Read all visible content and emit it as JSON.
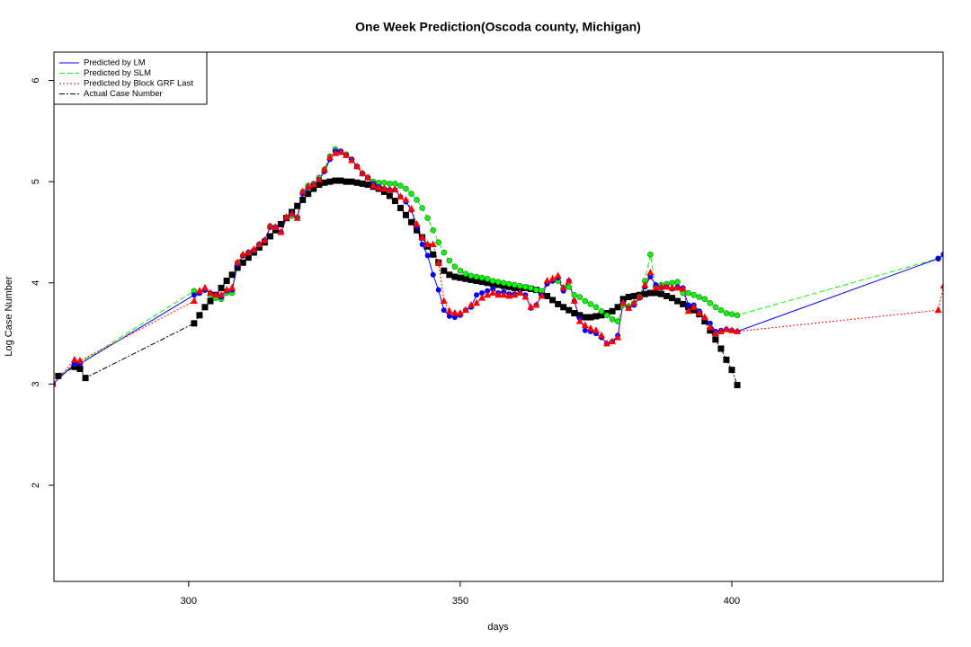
{
  "chart_data": {
    "type": "line",
    "title": "One Week Prediction(Oscoda county, Michigan)",
    "x_label": "days",
    "y_label": "Log Case Number",
    "xlim": [
      275.2,
      438.9
    ],
    "ylim": [
      1.05,
      6.28
    ],
    "xticks": [
      300,
      350,
      400
    ],
    "yticks": [
      2,
      3,
      4,
      5,
      6
    ],
    "grid": false,
    "legend_position": "top-left",
    "series": [
      {
        "name": "Predicted by LM",
        "color": "#0000ff",
        "marker_color": "#0000ff",
        "marker": "circle",
        "linestyle": "solid",
        "x": [
          275,
          279,
          280,
          301,
          302,
          303,
          304,
          305,
          306,
          307,
          308,
          309,
          310,
          311,
          312,
          313,
          314,
          315,
          316,
          317,
          318,
          319,
          320,
          321,
          322,
          323,
          324,
          325,
          326,
          327,
          328,
          329,
          330,
          331,
          332,
          333,
          334,
          335,
          336,
          337,
          338,
          339,
          340,
          341,
          342,
          343,
          344,
          345,
          346,
          347,
          348,
          349,
          350,
          351,
          352,
          353,
          354,
          355,
          356,
          357,
          358,
          359,
          360,
          361,
          362,
          363,
          364,
          365,
          366,
          367,
          368,
          369,
          370,
          371,
          372,
          373,
          374,
          375,
          376,
          377,
          378,
          379,
          380,
          381,
          382,
          383,
          384,
          385,
          386,
          387,
          388,
          389,
          390,
          391,
          392,
          393,
          394,
          395,
          396,
          397,
          398,
          399,
          400,
          401,
          438,
          439
        ],
        "values": [
          3.0,
          3.2,
          3.2,
          3.88,
          3.9,
          3.93,
          3.9,
          3.88,
          3.86,
          3.92,
          3.93,
          4.18,
          4.27,
          4.3,
          4.32,
          4.38,
          4.42,
          4.55,
          4.55,
          4.5,
          4.64,
          4.68,
          4.64,
          4.88,
          4.94,
          4.97,
          5.02,
          5.1,
          5.22,
          5.3,
          5.3,
          5.26,
          5.22,
          5.15,
          5.08,
          5.04,
          4.98,
          4.95,
          4.93,
          4.92,
          4.92,
          4.85,
          4.8,
          4.72,
          4.55,
          4.38,
          4.27,
          4.08,
          3.93,
          3.73,
          3.67,
          3.66,
          3.68,
          3.73,
          3.76,
          3.88,
          3.9,
          3.92,
          3.94,
          3.9,
          3.91,
          3.89,
          3.89,
          3.9,
          3.88,
          3.75,
          3.78,
          3.88,
          3.99,
          4.02,
          4.05,
          3.92,
          4.02,
          3.82,
          3.65,
          3.53,
          3.52,
          3.5,
          3.46,
          3.4,
          3.42,
          3.48,
          3.8,
          3.75,
          3.78,
          3.85,
          3.96,
          4.06,
          3.98,
          3.95,
          3.96,
          3.94,
          3.96,
          3.95,
          3.78,
          3.78,
          3.72,
          3.65,
          3.6,
          3.52,
          3.53,
          3.54,
          3.53,
          3.52,
          4.24,
          4.28
        ]
      },
      {
        "name": "Predicted by SLM",
        "color": "#00ff00",
        "marker_color": "#00ff00",
        "marker": "circle",
        "linestyle": "dashed",
        "x": [
          275,
          279,
          280,
          301,
          302,
          303,
          304,
          305,
          306,
          307,
          308,
          309,
          310,
          311,
          312,
          313,
          314,
          315,
          316,
          317,
          318,
          319,
          320,
          321,
          322,
          323,
          324,
          325,
          326,
          327,
          328,
          329,
          330,
          331,
          332,
          333,
          334,
          335,
          336,
          337,
          338,
          339,
          340,
          341,
          342,
          343,
          344,
          345,
          346,
          347,
          348,
          349,
          350,
          351,
          352,
          353,
          354,
          355,
          356,
          357,
          358,
          359,
          360,
          361,
          362,
          363,
          364,
          365,
          366,
          367,
          368,
          369,
          370,
          371,
          372,
          373,
          374,
          375,
          376,
          377,
          378,
          379,
          380,
          381,
          382,
          383,
          384,
          385,
          386,
          387,
          388,
          389,
          390,
          391,
          392,
          393,
          394,
          395,
          396,
          397,
          398,
          399,
          400,
          401,
          438,
          439
        ],
        "values": [
          3.0,
          3.2,
          3.21,
          3.92,
          3.9,
          3.93,
          3.88,
          3.85,
          3.84,
          3.9,
          3.9,
          4.2,
          4.27,
          4.3,
          4.32,
          4.38,
          4.42,
          4.56,
          4.55,
          4.5,
          4.64,
          4.66,
          4.65,
          4.9,
          4.96,
          4.98,
          5.04,
          5.12,
          5.25,
          5.32,
          5.3,
          5.27,
          5.22,
          5.15,
          5.08,
          5.04,
          5.0,
          4.99,
          4.99,
          4.98,
          4.98,
          4.96,
          4.93,
          4.88,
          4.82,
          4.74,
          4.64,
          4.52,
          4.4,
          4.3,
          4.22,
          4.16,
          4.12,
          4.09,
          4.07,
          4.06,
          4.05,
          4.04,
          4.02,
          4.01,
          4.0,
          3.99,
          3.98,
          3.97,
          3.96,
          3.95,
          3.93,
          3.92,
          4.0,
          4.02,
          4.02,
          3.95,
          3.96,
          3.88,
          3.86,
          3.82,
          3.79,
          3.76,
          3.72,
          3.68,
          3.64,
          3.62,
          3.78,
          3.77,
          3.8,
          3.86,
          4.02,
          4.28,
          3.96,
          3.98,
          3.99,
          4.0,
          4.01,
          3.9,
          3.9,
          3.88,
          3.86,
          3.84,
          3.8,
          3.76,
          3.73,
          3.7,
          3.69,
          3.68,
          4.24,
          4.28
        ]
      },
      {
        "name": "Predicted by Block GRF Last",
        "color": "#ff0000",
        "marker_color": "#ff0000",
        "marker": "triangle",
        "linestyle": "dotted",
        "x": [
          275,
          279,
          280,
          301,
          302,
          303,
          304,
          305,
          306,
          307,
          308,
          309,
          310,
          311,
          312,
          313,
          314,
          315,
          316,
          317,
          318,
          319,
          320,
          321,
          322,
          323,
          324,
          325,
          326,
          327,
          328,
          329,
          330,
          331,
          332,
          333,
          334,
          335,
          336,
          337,
          338,
          339,
          340,
          341,
          342,
          343,
          344,
          345,
          346,
          347,
          348,
          349,
          350,
          351,
          352,
          353,
          354,
          355,
          356,
          357,
          358,
          359,
          360,
          361,
          362,
          363,
          364,
          365,
          366,
          367,
          368,
          369,
          370,
          371,
          372,
          373,
          374,
          375,
          376,
          377,
          378,
          379,
          380,
          381,
          382,
          383,
          384,
          385,
          386,
          387,
          388,
          389,
          390,
          391,
          392,
          393,
          394,
          395,
          396,
          397,
          398,
          399,
          400,
          401,
          438,
          439
        ],
        "values": [
          3.0,
          3.24,
          3.23,
          3.82,
          3.92,
          3.95,
          3.9,
          3.88,
          3.88,
          3.93,
          3.95,
          4.2,
          4.28,
          4.3,
          4.33,
          4.38,
          4.42,
          4.56,
          4.55,
          4.5,
          4.65,
          4.68,
          4.64,
          4.9,
          4.95,
          4.97,
          5.02,
          5.12,
          5.24,
          5.28,
          5.29,
          5.26,
          5.21,
          5.15,
          5.08,
          5.04,
          4.96,
          4.94,
          4.93,
          4.92,
          4.92,
          4.85,
          4.82,
          4.73,
          4.58,
          4.45,
          4.38,
          4.38,
          4.2,
          3.82,
          3.72,
          3.7,
          3.7,
          3.73,
          3.78,
          3.8,
          3.85,
          3.88,
          3.9,
          3.88,
          3.88,
          3.87,
          3.88,
          3.9,
          3.86,
          3.76,
          3.78,
          3.87,
          4.02,
          4.04,
          4.07,
          3.95,
          4.02,
          3.82,
          3.62,
          3.58,
          3.55,
          3.53,
          3.48,
          3.4,
          3.42,
          3.46,
          3.8,
          3.75,
          3.8,
          3.86,
          3.98,
          4.1,
          3.95,
          3.96,
          3.96,
          3.95,
          3.95,
          3.94,
          3.72,
          3.76,
          3.7,
          3.66,
          3.56,
          3.5,
          3.52,
          3.54,
          3.53,
          3.52,
          3.73,
          3.97
        ]
      },
      {
        "name": "Actual Case Number",
        "color": "#000000",
        "marker_color": "#000000",
        "marker": "square",
        "linestyle": "dashdot",
        "x": [
          276,
          279,
          280,
          281,
          301,
          302,
          303,
          304,
          305,
          306,
          307,
          308,
          309,
          310,
          311,
          312,
          313,
          314,
          315,
          316,
          317,
          318,
          319,
          320,
          321,
          322,
          323,
          324,
          325,
          326,
          327,
          328,
          329,
          330,
          331,
          332,
          333,
          334,
          335,
          336,
          337,
          338,
          339,
          340,
          341,
          342,
          343,
          344,
          345,
          346,
          347,
          348,
          349,
          350,
          351,
          352,
          353,
          354,
          355,
          356,
          357,
          358,
          359,
          360,
          361,
          362,
          363,
          364,
          365,
          366,
          367,
          368,
          369,
          370,
          371,
          372,
          373,
          374,
          375,
          376,
          377,
          378,
          379,
          380,
          381,
          382,
          383,
          384,
          385,
          386,
          387,
          388,
          389,
          390,
          391,
          392,
          393,
          394,
          395,
          396,
          397,
          398,
          399,
          400,
          401
        ],
        "values": [
          3.08,
          3.17,
          3.15,
          3.06,
          3.6,
          3.68,
          3.76,
          3.82,
          3.88,
          3.95,
          4.02,
          4.08,
          4.15,
          4.2,
          4.25,
          4.3,
          4.35,
          4.4,
          4.46,
          4.52,
          4.58,
          4.64,
          4.7,
          4.76,
          4.82,
          4.88,
          4.93,
          4.97,
          4.99,
          5.0,
          5.01,
          5.01,
          5.0,
          5.0,
          4.99,
          4.98,
          4.97,
          4.95,
          4.93,
          4.9,
          4.86,
          4.81,
          4.74,
          4.67,
          4.6,
          4.52,
          4.45,
          4.36,
          4.28,
          4.2,
          4.12,
          4.08,
          4.06,
          4.05,
          4.04,
          4.03,
          4.02,
          4.01,
          4.0,
          3.99,
          3.98,
          3.97,
          3.96,
          3.95,
          3.95,
          3.95,
          3.94,
          3.93,
          3.9,
          3.87,
          3.83,
          3.79,
          3.76,
          3.73,
          3.7,
          3.68,
          3.66,
          3.66,
          3.67,
          3.68,
          3.7,
          3.72,
          3.76,
          3.84,
          3.86,
          3.87,
          3.88,
          3.89,
          3.9,
          3.9,
          3.89,
          3.87,
          3.85,
          3.82,
          3.79,
          3.76,
          3.73,
          3.69,
          3.62,
          3.53,
          3.44,
          3.35,
          3.24,
          3.14,
          2.99
        ]
      }
    ]
  }
}
